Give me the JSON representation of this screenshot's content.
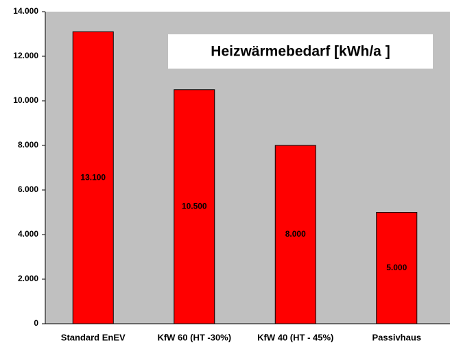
{
  "chart_data": {
    "type": "bar",
    "title": "Heizwärmebedarf [kWh/a ]",
    "categories": [
      "Standard EnEV",
      "KfW 60 (HT -30%)",
      "KfW 40 (HT - 45%)",
      "Passivhaus"
    ],
    "values": [
      13100,
      10500,
      8000,
      5000
    ],
    "value_labels": [
      "13.100",
      "10.500",
      "8.000",
      "5.000"
    ],
    "color": "#ff0000",
    "ylim": [
      0,
      14000
    ],
    "yticks": [
      0,
      {
        "value": 2000,
        "label": "2.000"
      },
      {
        "value": 4000,
        "label": "4.000"
      },
      {
        "value": 6000,
        "label": "6.000"
      },
      {
        "value": 8000,
        "label": "8.000"
      },
      {
        "value": 10000,
        "label": "10.000"
      },
      {
        "value": 12000,
        "label": "12.000"
      },
      {
        "value": 14000,
        "label": "14.000"
      }
    ],
    "grid": false
  }
}
